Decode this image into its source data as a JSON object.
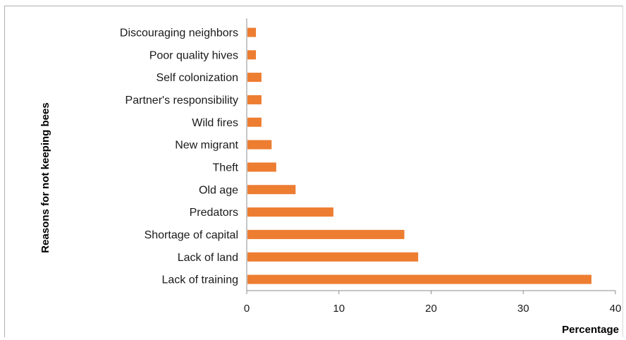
{
  "chart_data": {
    "type": "bar",
    "orientation": "horizontal",
    "categories": [
      "Discouraging neighbors",
      "Poor quality hives",
      "Self colonization",
      "Partner's responsibility",
      "Wild fires",
      "New migrant",
      "Theft",
      "Old age",
      "Predators",
      "Shortage of capital",
      "Lack of land",
      "Lack of training"
    ],
    "values": [
      1.0,
      1.0,
      1.6,
      1.6,
      1.6,
      2.7,
      3.2,
      5.3,
      9.4,
      17.1,
      18.6,
      37.4
    ],
    "xlabel": "Percentage",
    "ylabel": "Reasons for not keeping bees",
    "xlim": [
      0,
      40
    ],
    "xticks": [
      0,
      10,
      20,
      30,
      40
    ],
    "bar_color": "#ED7D31",
    "grid": false,
    "legend": "none"
  }
}
